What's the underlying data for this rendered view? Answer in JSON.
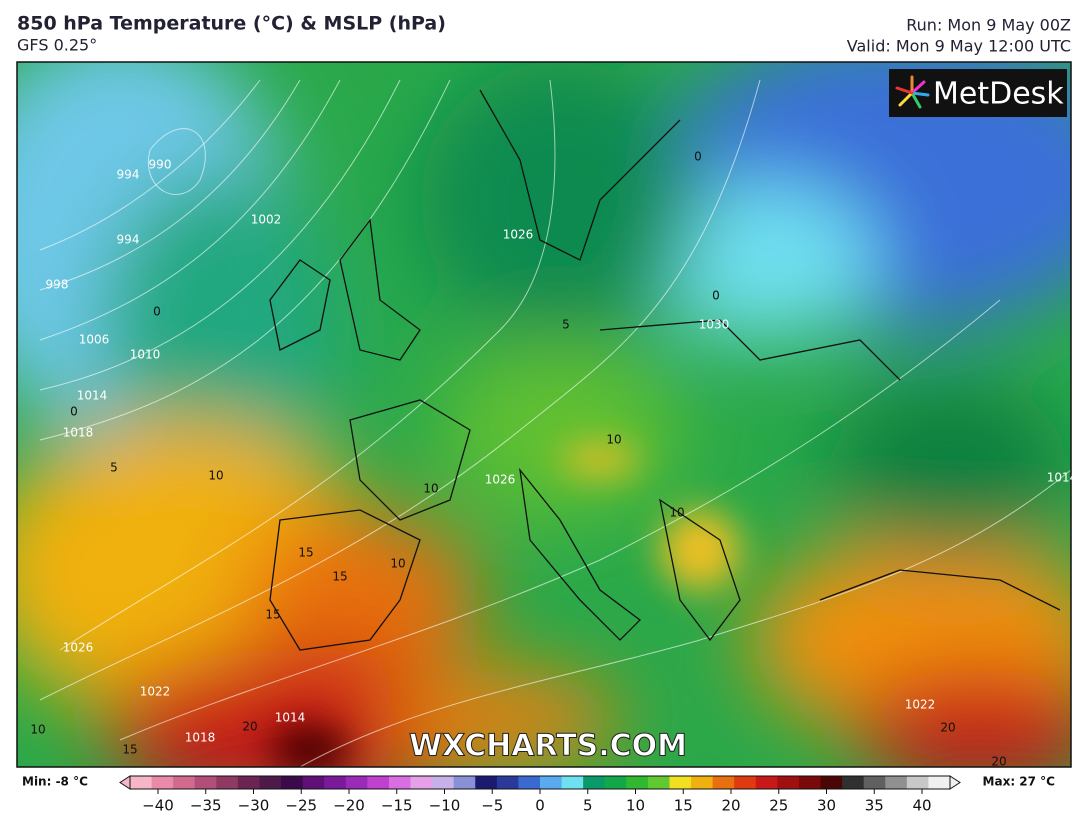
{
  "header": {
    "title": "850 hPa Temperature (°C) & MSLP (hPa)",
    "model": "GFS 0.25°",
    "run": "Run: Mon 9 May 00Z",
    "valid": "Valid: Mon 9 May 12:00 UTC"
  },
  "logo": "MetDesk",
  "watermark": "WXCHARTS.COM",
  "map_labels": [
    "994",
    "990",
    "994",
    "998",
    "1002",
    "1006",
    "1010",
    "1014",
    "1018",
    "1026",
    "1026",
    "1030",
    "1022",
    "1026",
    "1022",
    "1018",
    "1014",
    "0",
    "0",
    "5",
    "5",
    "10",
    "10",
    "10",
    "10",
    "10",
    "15",
    "15",
    "15",
    "20",
    "20",
    "0",
    "0",
    "10",
    "15",
    "20",
    "1014"
  ],
  "colorbar": {
    "min_label": "Min: -8 °C",
    "max_label": "Max: 27 °C",
    "ticks": [
      {
        "value": -40,
        "label": "−40"
      },
      {
        "value": -35,
        "label": "−35"
      },
      {
        "value": -30,
        "label": "−30"
      },
      {
        "value": -25,
        "label": "−25"
      },
      {
        "value": -20,
        "label": "−20"
      },
      {
        "value": -15,
        "label": "−15"
      },
      {
        "value": -10,
        "label": "−10"
      },
      {
        "value": -5,
        "label": "−5"
      },
      0,
      5,
      10,
      15,
      20,
      25,
      30,
      35,
      40
    ],
    "colors": [
      "#f7b6c8",
      "#e98aa8",
      "#d26a8e",
      "#b24f78",
      "#8e3a63",
      "#6a2552",
      "#4d1a4a",
      "#3b0a4a",
      "#5e0f78",
      "#7a1a9a",
      "#9a2bb8",
      "#c040d0",
      "#d96ee0",
      "#e6a0e8",
      "#c8b0e8",
      "#8890d8",
      "#1a1a6e",
      "#2a3a9a",
      "#3a6ad0",
      "#5aaaf0",
      "#6ee0f0",
      "#0a9a6a",
      "#12a84a",
      "#30b830",
      "#60c830",
      "#f0e020",
      "#f0b010",
      "#e87010",
      "#e03a10",
      "#c81818",
      "#a01010",
      "#7a0a0a",
      "#4a0505",
      "#303030",
      "#606060",
      "#909090",
      "#c8c8c8",
      "#f0f0f0"
    ]
  }
}
